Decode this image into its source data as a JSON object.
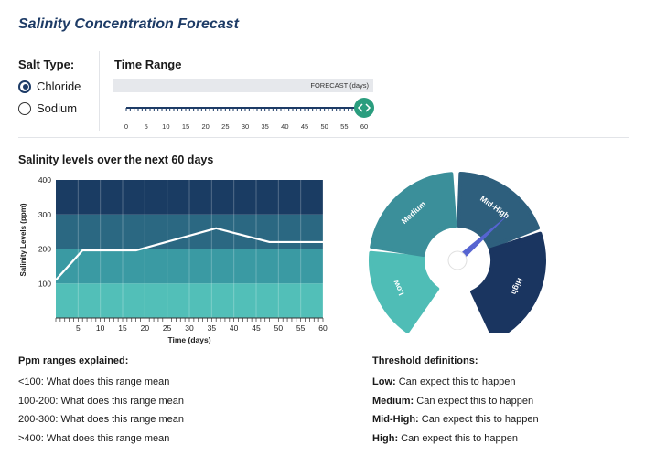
{
  "title": "Salinity Concentration Forecast",
  "salt_type": {
    "label": "Salt Type:",
    "options": [
      {
        "label": "Chloride",
        "checked": true
      },
      {
        "label": "Sodium",
        "checked": false
      }
    ]
  },
  "time_range": {
    "label": "Time Range",
    "bar_label": "FORECAST (days)",
    "ticks": [
      "0",
      "5",
      "10",
      "15",
      "20",
      "25",
      "30",
      "35",
      "40",
      "45",
      "50",
      "55",
      "60"
    ],
    "value": 60,
    "max": 60
  },
  "chart_section_title": "Salinity levels over the next 60 days",
  "chart_data": {
    "type": "line",
    "xlabel": "Time (days)",
    "ylabel": "Salinity Levels (ppm)",
    "xlim": [
      0,
      60
    ],
    "ylim": [
      0,
      400
    ],
    "x_ticks": [
      5,
      10,
      15,
      20,
      25,
      30,
      35,
      40,
      45,
      50,
      55,
      60
    ],
    "y_ticks": [
      100,
      200,
      300,
      400
    ],
    "bands": [
      {
        "from": 0,
        "to": 100,
        "color": "#52bfb8"
      },
      {
        "from": 100,
        "to": 200,
        "color": "#3a9aa3"
      },
      {
        "from": 200,
        "to": 300,
        "color": "#2b6882"
      },
      {
        "from": 300,
        "to": 400,
        "color": "#1a3c63"
      }
    ],
    "series": [
      {
        "color": "#ffffff",
        "points": [
          [
            0,
            110
          ],
          [
            6,
            196
          ],
          [
            18,
            196
          ],
          [
            36,
            260
          ],
          [
            48,
            220
          ],
          [
            60,
            220
          ]
        ]
      }
    ]
  },
  "gauge": {
    "segments": [
      {
        "label": "Low",
        "color": "#4fbdb6"
      },
      {
        "label": "Medium",
        "color": "#3b8f9a"
      },
      {
        "label": "Mid-High",
        "color": "#2e5f7d"
      },
      {
        "label": "High",
        "color": "#1a3560"
      }
    ],
    "needle_color": "#5664d1"
  },
  "ppm": {
    "heading": "Ppm ranges explained:",
    "items": [
      "<100: What does this range mean",
      "100-200: What does this range mean",
      "200-300: What does this range mean",
      ">400: What does this range mean"
    ]
  },
  "thresholds": {
    "heading": "Threshold definitions:",
    "items": [
      {
        "term": "Low:",
        "desc": " Can expect this to happen"
      },
      {
        "term": "Medium:",
        "desc": " Can expect this to happen"
      },
      {
        "term": "Mid-High:",
        "desc": " Can expect this to happen"
      },
      {
        "term": "High:",
        "desc": " Can expect this to happen"
      }
    ]
  },
  "colors": {
    "accent": "#1d3b66",
    "slider_knob": "#2a9d7e"
  }
}
